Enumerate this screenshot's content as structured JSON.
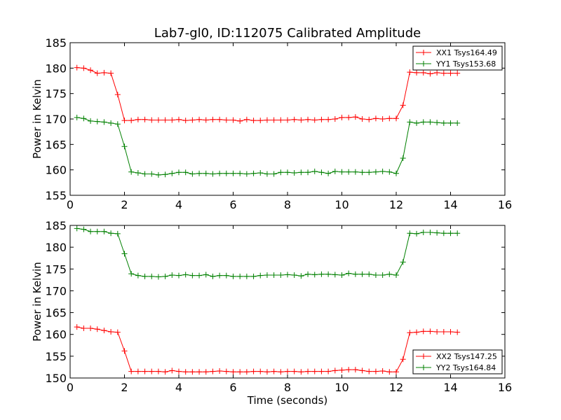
{
  "figure": {
    "title": "Lab7-gl0, ID:112075 Calibrated Amplitude"
  },
  "chart_data": [
    {
      "type": "line",
      "title": "Lab7-gl0, ID:112075 Calibrated Amplitude",
      "xlabel": "",
      "ylabel": "Power in Kelvin",
      "xlim": [
        0,
        16
      ],
      "ylim": [
        155,
        185
      ],
      "x_ticks": [
        0,
        2,
        4,
        6,
        8,
        10,
        12,
        14,
        16
      ],
      "y_ticks": [
        155,
        160,
        165,
        170,
        175,
        180,
        185
      ],
      "grid": false,
      "legend_position": "top-right",
      "x": [
        0.25,
        0.5,
        0.75,
        1.0,
        1.25,
        1.5,
        1.75,
        2.0,
        2.25,
        2.5,
        2.75,
        3.0,
        3.25,
        3.5,
        3.75,
        4.0,
        4.25,
        4.5,
        4.75,
        5.0,
        5.25,
        5.5,
        5.75,
        6.0,
        6.25,
        6.5,
        6.75,
        7.0,
        7.25,
        7.5,
        7.75,
        8.0,
        8.25,
        8.5,
        8.75,
        9.0,
        9.25,
        9.5,
        9.75,
        10.0,
        10.25,
        10.5,
        10.75,
        11.0,
        11.25,
        11.5,
        11.75,
        12.0,
        12.25,
        12.5,
        12.75,
        13.0,
        13.25,
        13.5,
        13.75,
        14.0,
        14.25
      ],
      "series": [
        {
          "name": "XX1 Tsys164.49",
          "color": "#ff0000",
          "values": [
            180.1,
            180.0,
            179.6,
            179.0,
            179.1,
            179.0,
            174.8,
            169.7,
            169.7,
            169.9,
            169.9,
            169.8,
            169.8,
            169.8,
            169.8,
            169.9,
            169.7,
            169.8,
            169.9,
            169.8,
            169.9,
            169.9,
            169.8,
            169.8,
            169.6,
            169.9,
            169.7,
            169.7,
            169.8,
            169.8,
            169.8,
            169.8,
            169.9,
            169.8,
            169.9,
            169.8,
            169.9,
            169.9,
            170.0,
            170.3,
            170.3,
            170.4,
            170.0,
            169.9,
            170.1,
            170.0,
            170.1,
            170.1,
            172.7,
            179.2,
            179.1,
            179.1,
            178.9,
            179.1,
            179.0,
            179.0,
            179.0
          ]
        },
        {
          "name": "YY1 Tsys153.68",
          "color": "#008000",
          "values": [
            170.3,
            170.1,
            169.6,
            169.5,
            169.4,
            169.2,
            169.0,
            164.6,
            159.6,
            159.4,
            159.2,
            159.2,
            159.0,
            159.1,
            159.3,
            159.5,
            159.5,
            159.2,
            159.3,
            159.3,
            159.2,
            159.3,
            159.3,
            159.3,
            159.3,
            159.2,
            159.3,
            159.4,
            159.2,
            159.2,
            159.5,
            159.5,
            159.4,
            159.5,
            159.5,
            159.7,
            159.5,
            159.3,
            159.7,
            159.6,
            159.6,
            159.6,
            159.5,
            159.5,
            159.6,
            159.7,
            159.6,
            159.3,
            162.3,
            169.4,
            169.2,
            169.4,
            169.4,
            169.3,
            169.2,
            169.2,
            169.2
          ]
        }
      ]
    },
    {
      "type": "line",
      "title": "",
      "xlabel": "Time (seconds)",
      "ylabel": "Power in Kelvin",
      "xlim": [
        0,
        16
      ],
      "ylim": [
        150,
        185
      ],
      "x_ticks": [
        0,
        2,
        4,
        6,
        8,
        10,
        12,
        14,
        16
      ],
      "y_ticks": [
        150,
        155,
        160,
        165,
        170,
        175,
        180,
        185
      ],
      "grid": false,
      "legend_position": "bottom-right",
      "x": [
        0.25,
        0.5,
        0.75,
        1.0,
        1.25,
        1.5,
        1.75,
        2.0,
        2.25,
        2.5,
        2.75,
        3.0,
        3.25,
        3.5,
        3.75,
        4.0,
        4.25,
        4.5,
        4.75,
        5.0,
        5.25,
        5.5,
        5.75,
        6.0,
        6.25,
        6.5,
        6.75,
        7.0,
        7.25,
        7.5,
        7.75,
        8.0,
        8.25,
        8.5,
        8.75,
        9.0,
        9.25,
        9.5,
        9.75,
        10.0,
        10.25,
        10.5,
        10.75,
        11.0,
        11.25,
        11.5,
        11.75,
        12.0,
        12.25,
        12.5,
        12.75,
        13.0,
        13.25,
        13.5,
        13.75,
        14.0,
        14.25
      ],
      "series": [
        {
          "name": "XX2 Tsys147.25",
          "color": "#ff0000",
          "values": [
            161.7,
            161.4,
            161.4,
            161.2,
            160.9,
            160.6,
            160.5,
            156.2,
            151.5,
            151.5,
            151.5,
            151.5,
            151.5,
            151.4,
            151.7,
            151.5,
            151.4,
            151.4,
            151.4,
            151.4,
            151.5,
            151.6,
            151.5,
            151.4,
            151.4,
            151.4,
            151.5,
            151.5,
            151.4,
            151.5,
            151.4,
            151.5,
            151.5,
            151.4,
            151.5,
            151.5,
            151.5,
            151.5,
            151.7,
            151.8,
            151.9,
            151.9,
            151.7,
            151.5,
            151.5,
            151.6,
            151.4,
            151.4,
            154.3,
            160.4,
            160.5,
            160.7,
            160.7,
            160.6,
            160.6,
            160.6,
            160.5
          ]
        },
        {
          "name": "YY2 Tsys164.84",
          "color": "#008000",
          "values": [
            184.3,
            184.1,
            183.6,
            183.6,
            183.6,
            183.2,
            183.1,
            178.5,
            173.9,
            173.5,
            173.3,
            173.3,
            173.2,
            173.3,
            173.6,
            173.5,
            173.7,
            173.5,
            173.5,
            173.7,
            173.3,
            173.5,
            173.5,
            173.3,
            173.3,
            173.3,
            173.3,
            173.5,
            173.6,
            173.6,
            173.6,
            173.7,
            173.6,
            173.4,
            173.8,
            173.7,
            173.8,
            173.8,
            173.7,
            173.6,
            174.0,
            173.8,
            173.8,
            173.8,
            173.6,
            173.6,
            173.8,
            173.6,
            176.6,
            183.2,
            183.1,
            183.4,
            183.4,
            183.3,
            183.2,
            183.2,
            183.2
          ]
        }
      ]
    }
  ]
}
